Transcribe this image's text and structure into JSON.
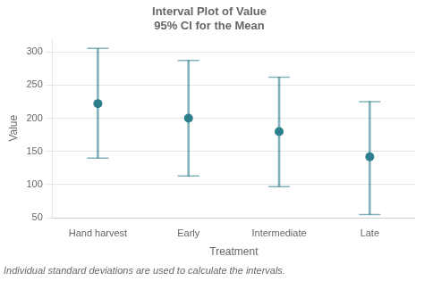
{
  "chart_data": {
    "type": "interval",
    "title": "Interval Plot of Value\n95% CI for the Mean",
    "x_label": "Treatment",
    "y_label": "Value",
    "categories": [
      "Hand harvest",
      "Early",
      "Intermediate",
      "Late"
    ],
    "values": [
      222,
      200,
      180,
      142
    ],
    "ci_lower": [
      140,
      113,
      97,
      55
    ],
    "ci_upper": [
      305,
      287,
      262,
      225
    ],
    "color": "#2e7f8e",
    "ylim": [
      50,
      320
    ],
    "yticks": [
      50,
      100,
      150,
      200,
      250,
      300
    ],
    "grid": true,
    "annotations": [
      "Individual standard deviations are used to calculate the intervals."
    ]
  }
}
